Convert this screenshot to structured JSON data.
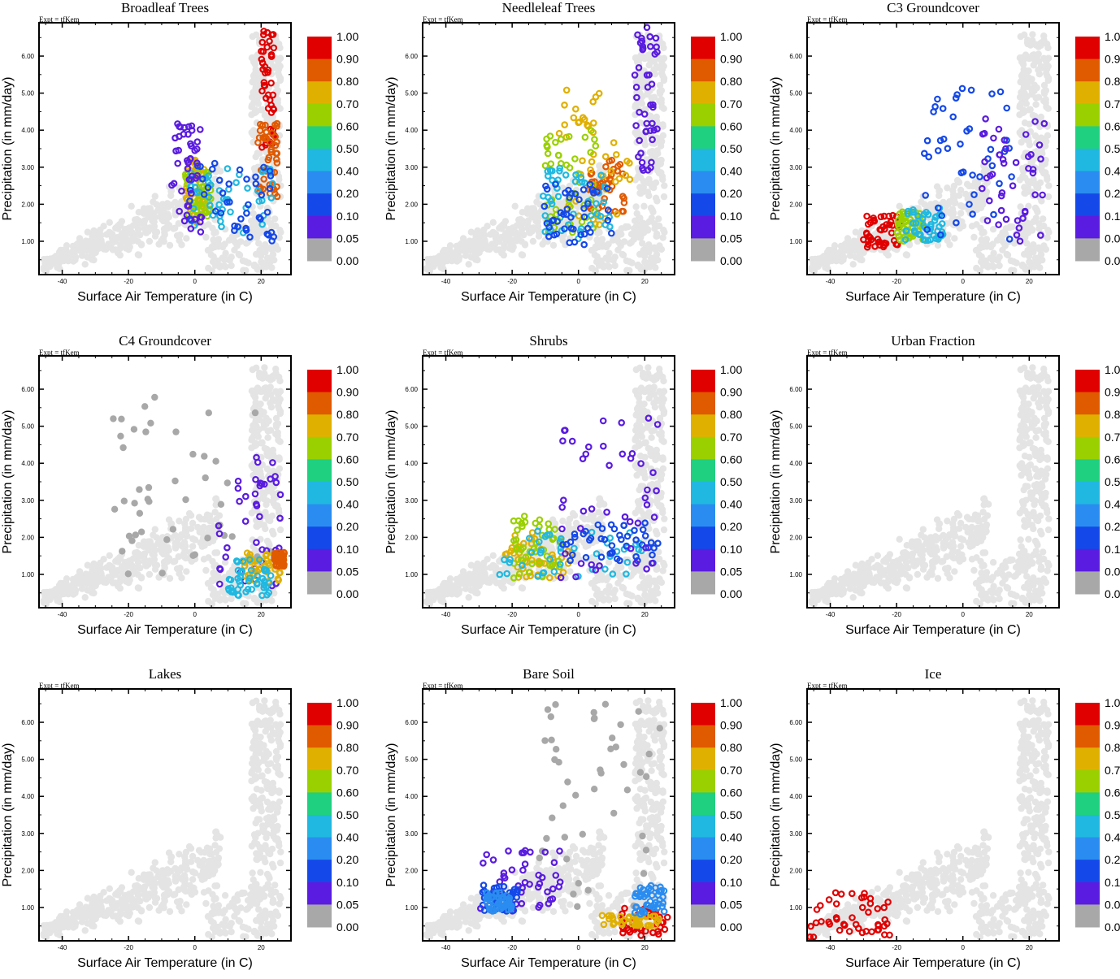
{
  "figure": {
    "expt_label": "Expt = tfKem",
    "xlabel": "Surface Air Temperature (in C)",
    "ylabel": "Precipitation (in mm/day)"
  },
  "colorbar": {
    "labels": [
      "1.00",
      "0.90",
      "0.80",
      "0.70",
      "0.60",
      "0.50",
      "0.40",
      "0.20",
      "0.10",
      "0.05",
      "0.00"
    ],
    "colors": [
      "#e00000",
      "#e05a00",
      "#e0b000",
      "#9ad000",
      "#1fd080",
      "#20b8e0",
      "#2a8cf0",
      "#1548e8",
      "#5a1ce0",
      "#a8a8a8"
    ]
  },
  "chart_data": [
    {
      "type": "scatter",
      "title": "Broadleaf Trees",
      "xlabel": "Surface Air Temperature (in C)",
      "ylabel": "Precipitation (in mm/day)",
      "xlim": [
        -47,
        29
      ],
      "ylim": [
        0.1,
        6.9
      ],
      "xticks": [
        "-40",
        "-20",
        "0",
        "20"
      ],
      "yticks": [
        "1.00",
        "2.00",
        "3.00",
        "4.00",
        "5.00",
        "6.00"
      ],
      "highlight_clusters": [
        {
          "color": "#e00000",
          "x_range": [
            20,
            24
          ],
          "y_range": [
            3.5,
            6.8
          ]
        },
        {
          "color": "#e05a00",
          "x_range": [
            19,
            25
          ],
          "y_range": [
            2.2,
            4.2
          ]
        },
        {
          "color": "#e0b000",
          "x_range": [
            -3,
            3
          ],
          "y_range": [
            1.5,
            3.2
          ]
        },
        {
          "color": "#9ad000",
          "x_range": [
            -3,
            5
          ],
          "y_range": [
            1.6,
            3.0
          ]
        },
        {
          "color": "#20b8e0",
          "x_range": [
            -2,
            24
          ],
          "y_range": [
            1.2,
            3.0
          ]
        },
        {
          "color": "#1548e8",
          "x_range": [
            -2,
            24
          ],
          "y_range": [
            1.0,
            3.2
          ]
        },
        {
          "color": "#5a1ce0",
          "x_range": [
            -7,
            2
          ],
          "y_range": [
            1.2,
            4.2
          ]
        }
      ]
    },
    {
      "type": "scatter",
      "title": "Needleleaf Trees",
      "xlabel": "Surface Air Temperature (in C)",
      "ylabel": "Precipitation (in mm/day)",
      "xlim": [
        -47,
        29
      ],
      "ylim": [
        0.1,
        6.9
      ],
      "xticks": [
        "-40",
        "-20",
        "0",
        "20"
      ],
      "yticks": [
        "1.00",
        "2.00",
        "3.00",
        "4.00",
        "5.00",
        "6.00"
      ],
      "highlight_clusters": [
        {
          "color": "#e05a00",
          "x_range": [
            3,
            14
          ],
          "y_range": [
            1.8,
            3.2
          ]
        },
        {
          "color": "#e0b000",
          "x_range": [
            -8,
            16
          ],
          "y_range": [
            1.4,
            5.1
          ]
        },
        {
          "color": "#9ad000",
          "x_range": [
            -10,
            6
          ],
          "y_range": [
            1.2,
            4.0
          ]
        },
        {
          "color": "#20b8e0",
          "x_range": [
            -12,
            10
          ],
          "y_range": [
            1.0,
            3.0
          ]
        },
        {
          "color": "#1548e8",
          "x_range": [
            -11,
            10
          ],
          "y_range": [
            0.9,
            2.6
          ]
        },
        {
          "color": "#5a1ce0",
          "x_range": [
            17,
            24
          ],
          "y_range": [
            2.8,
            6.8
          ]
        }
      ]
    },
    {
      "type": "scatter",
      "title": "C3 Groundcover",
      "xlabel": "Surface Air Temperature (in C)",
      "ylabel": "Precipitation (in mm/day)",
      "xlim": [
        -47,
        29
      ],
      "ylim": [
        0.1,
        6.9
      ],
      "xticks": [
        "-40",
        "-20",
        "0",
        "20"
      ],
      "yticks": [
        "1.00",
        "2.00",
        "3.00",
        "4.00",
        "5.00",
        "6.00"
      ],
      "highlight_clusters": [
        {
          "color": "#e00000",
          "x_range": [
            -30,
            -19
          ],
          "y_range": [
            0.8,
            1.7
          ]
        },
        {
          "color": "#9ad000",
          "x_range": [
            -20,
            -12
          ],
          "y_range": [
            1.0,
            1.8
          ]
        },
        {
          "color": "#20b8e0",
          "x_range": [
            -18,
            -6
          ],
          "y_range": [
            1.0,
            1.9
          ]
        },
        {
          "color": "#1548e8",
          "x_range": [
            -12,
            16
          ],
          "y_range": [
            0.9,
            5.2
          ]
        },
        {
          "color": "#5a1ce0",
          "x_range": [
            5,
            25
          ],
          "y_range": [
            1.0,
            4.4
          ]
        }
      ]
    },
    {
      "type": "scatter",
      "title": "C4 Groundcover",
      "xlabel": "Surface Air Temperature (in C)",
      "ylabel": "Precipitation (in mm/day)",
      "xlim": [
        -47,
        29
      ],
      "ylim": [
        0.1,
        6.9
      ],
      "xticks": [
        "-40",
        "-20",
        "0",
        "20"
      ],
      "yticks": [
        "1.00",
        "2.00",
        "3.00",
        "4.00",
        "5.00",
        "6.00"
      ],
      "highlight_clusters": [
        {
          "color": "#a8a8a8",
          "x_range": [
            -25,
            24
          ],
          "y_range": [
            1.0,
            5.8
          ]
        },
        {
          "color": "#5a1ce0",
          "x_range": [
            7,
            26
          ],
          "y_range": [
            0.6,
            4.2
          ]
        },
        {
          "color": "#e0b000",
          "x_range": [
            15,
            26
          ],
          "y_range": [
            0.8,
            1.6
          ]
        },
        {
          "color": "#20b8e0",
          "x_range": [
            10,
            23
          ],
          "y_range": [
            0.4,
            1.4
          ]
        },
        {
          "color": "#e05a00",
          "x_range": [
            24,
            27
          ],
          "y_range": [
            1.2,
            1.6
          ]
        }
      ]
    },
    {
      "type": "scatter",
      "title": "Shrubs",
      "xlabel": "Surface Air Temperature (in C)",
      "ylabel": "Precipitation (in mm/day)",
      "xlim": [
        -47,
        29
      ],
      "ylim": [
        0.1,
        6.9
      ],
      "xticks": [
        "-40",
        "-20",
        "0",
        "20"
      ],
      "yticks": [
        "1.00",
        "2.00",
        "3.00",
        "4.00",
        "5.00",
        "6.00"
      ],
      "highlight_clusters": [
        {
          "color": "#e0b000",
          "x_range": [
            -22,
            -2
          ],
          "y_range": [
            0.9,
            2.2
          ]
        },
        {
          "color": "#9ad000",
          "x_range": [
            -20,
            -5
          ],
          "y_range": [
            0.9,
            2.6
          ]
        },
        {
          "color": "#20b8e0",
          "x_range": [
            -25,
            20
          ],
          "y_range": [
            0.9,
            2.2
          ]
        },
        {
          "color": "#1548e8",
          "x_range": [
            -5,
            24
          ],
          "y_range": [
            1.3,
            2.4
          ]
        },
        {
          "color": "#5a1ce0",
          "x_range": [
            -6,
            25
          ],
          "y_range": [
            0.9,
            5.5
          ]
        }
      ]
    },
    {
      "type": "scatter",
      "title": "Urban Fraction",
      "xlabel": "Surface Air Temperature (in C)",
      "ylabel": "Precipitation (in mm/day)",
      "xlim": [
        -47,
        29
      ],
      "ylim": [
        0.1,
        6.9
      ],
      "xticks": [
        "-40",
        "-20",
        "0",
        "20"
      ],
      "yticks": [
        "1.00",
        "2.00",
        "3.00",
        "4.00",
        "5.00",
        "6.00"
      ],
      "highlight_clusters": []
    },
    {
      "type": "scatter",
      "title": "Lakes",
      "xlabel": "Surface Air Temperature (in C)",
      "ylabel": "Precipitation (in mm/day)",
      "xlim": [
        -47,
        29
      ],
      "ylim": [
        0.1,
        6.9
      ],
      "xticks": [
        "-40",
        "-20",
        "0",
        "20"
      ],
      "yticks": [
        "1.00",
        "2.00",
        "3.00",
        "4.00",
        "5.00",
        "6.00"
      ],
      "highlight_clusters": []
    },
    {
      "type": "scatter",
      "title": "Bare Soil",
      "xlabel": "Surface Air Temperature (in C)",
      "ylabel": "Precipitation (in mm/day)",
      "xlim": [
        -47,
        29
      ],
      "ylim": [
        0.1,
        6.9
      ],
      "xticks": [
        "-40",
        "-20",
        "0",
        "20"
      ],
      "yticks": [
        "1.00",
        "2.00",
        "3.00",
        "4.00",
        "5.00",
        "6.00"
      ],
      "highlight_clusters": [
        {
          "color": "#a8a8a8",
          "x_range": [
            -12,
            25
          ],
          "y_range": [
            0.9,
            6.5
          ]
        },
        {
          "color": "#5a1ce0",
          "x_range": [
            -30,
            -5
          ],
          "y_range": [
            0.9,
            2.6
          ]
        },
        {
          "color": "#1548e8",
          "x_range": [
            -29,
            -18
          ],
          "y_range": [
            0.9,
            1.6
          ]
        },
        {
          "color": "#2a8cf0",
          "x_range": [
            -28,
            -20
          ],
          "y_range": [
            0.9,
            1.4
          ]
        },
        {
          "color": "#e00000",
          "x_range": [
            13,
            27
          ],
          "y_range": [
            0.2,
            1.0
          ]
        },
        {
          "color": "#e0b000",
          "x_range": [
            7,
            25
          ],
          "y_range": [
            0.5,
            0.8
          ]
        },
        {
          "color": "#2a8cf0",
          "x_range": [
            17,
            26
          ],
          "y_range": [
            0.8,
            1.6
          ]
        }
      ]
    },
    {
      "type": "scatter",
      "title": "Ice",
      "xlabel": "Surface Air Temperature (in C)",
      "ylabel": "Precipitation (in mm/day)",
      "xlim": [
        -47,
        29
      ],
      "ylim": [
        0.1,
        6.9
      ],
      "xticks": [
        "-40",
        "-20",
        "0",
        "20"
      ],
      "yticks": [
        "1.00",
        "2.00",
        "3.00",
        "4.00",
        "5.00",
        "6.00"
      ],
      "highlight_clusters": [
        {
          "color": "#e00000",
          "x_range": [
            -47,
            -22
          ],
          "y_range": [
            0.2,
            1.4
          ]
        }
      ]
    }
  ]
}
